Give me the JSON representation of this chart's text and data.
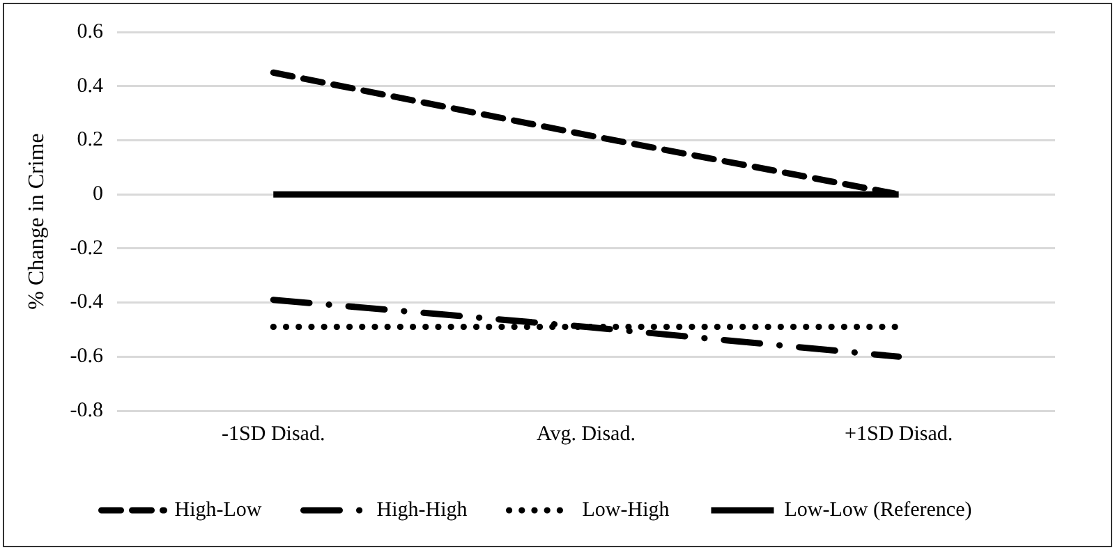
{
  "chart_data": {
    "type": "line",
    "ylabel": "% Change in Crime",
    "categories": [
      "-1SD Disad.",
      "Avg. Disad.",
      "+1SD Disad."
    ],
    "ylim": [
      -0.8,
      0.6
    ],
    "yticks": [
      -0.8,
      -0.6,
      -0.4,
      -0.2,
      0,
      0.2,
      0.4,
      0.6
    ],
    "grid": "y",
    "legend": "bottom",
    "marker": "none",
    "series": [
      {
        "name": "High-Low",
        "color": "#000000",
        "line_style": "dashed",
        "values": [
          0.45,
          0.22,
          0
        ]
      },
      {
        "name": "High-High",
        "color": "#000000",
        "line_style": "dashdot",
        "values": [
          -0.39,
          -0.49,
          -0.6
        ]
      },
      {
        "name": "Low-High",
        "color": "#000000",
        "line_style": "dotted",
        "values": [
          -0.49,
          -0.49,
          -0.49
        ]
      },
      {
        "name": "Low-Low (Reference)",
        "color": "#000000",
        "line_style": "solid",
        "values": [
          0,
          0,
          0
        ]
      }
    ]
  }
}
